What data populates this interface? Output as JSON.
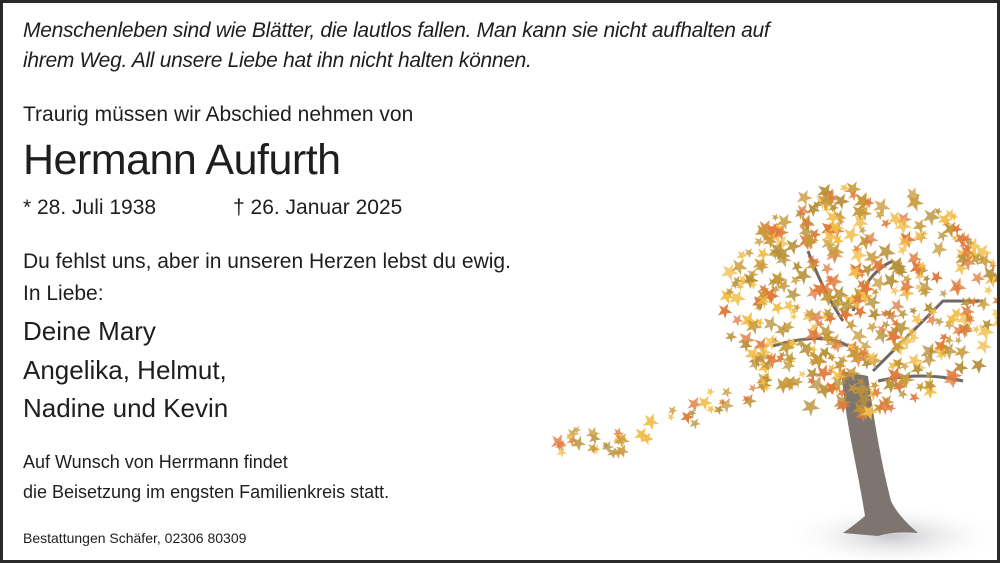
{
  "quote": {
    "line1": "Menschenleben sind wie Blätter, die lautlos fallen. Man kann sie nicht aufhalten auf",
    "line2": "ihrem Weg. All unsere Liebe hat ihn nicht halten können."
  },
  "intro": "Traurig müssen wir Abschied nehmen von",
  "name": "Hermann Aufurth",
  "born": "* 28. Juli 1938",
  "died": "† 26. Januar 2025",
  "message": "Du fehlst uns, aber in unseren Herzen lebst du ewig.",
  "in_love": "In Liebe:",
  "mourners": [
    "Deine Mary",
    "Angelika, Helmut,",
    "Nadine und Kevin"
  ],
  "burial": {
    "line1": "Auf Wunsch von Herrmann findet",
    "line2": "die Beisetzung im engsten Familienkreis statt."
  },
  "funeral_home": "Bestattungen Schäfer, 02306 80309",
  "image": {
    "icon": "autumn-tree-illustration",
    "leaf_colors": [
      "#e07a3c",
      "#b8913a",
      "#f3be4a",
      "#c99a3a"
    ],
    "trunk_color": "#7e7470"
  }
}
